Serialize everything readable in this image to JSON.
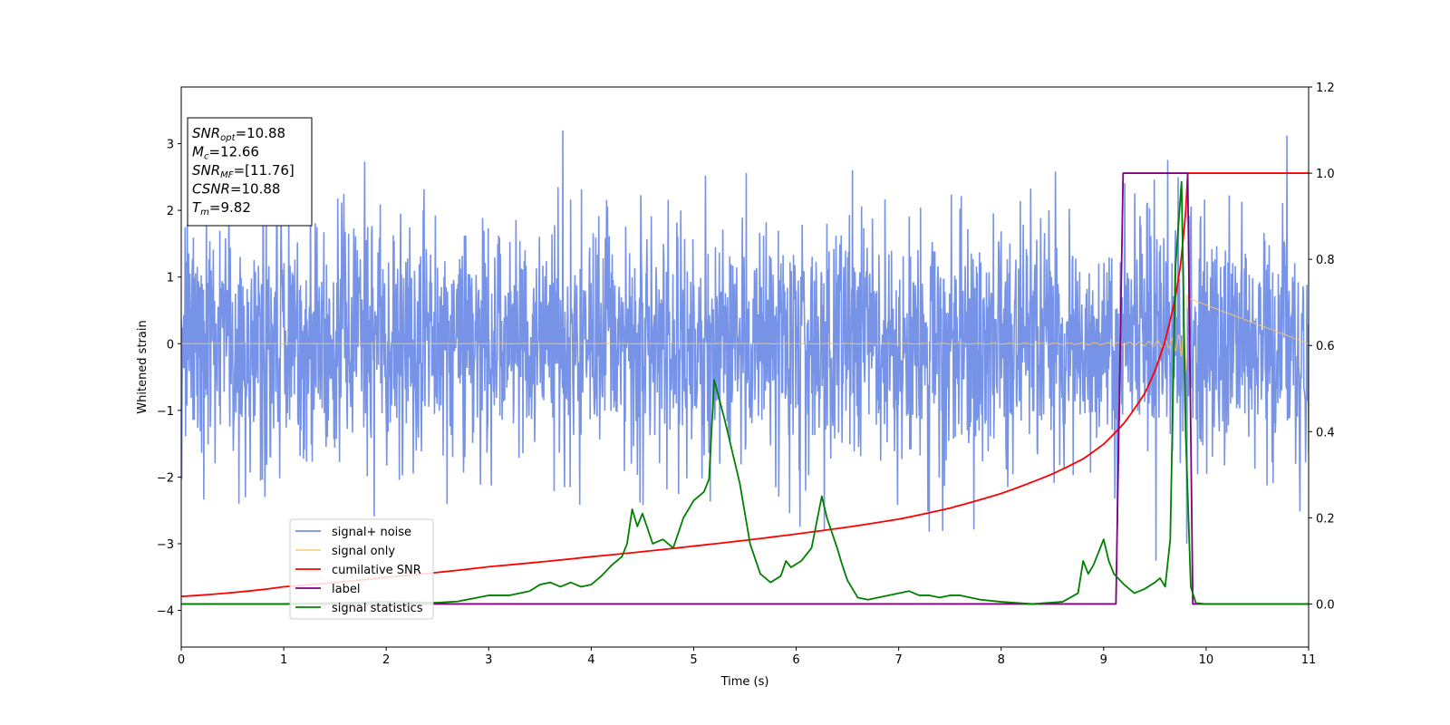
{
  "chart_data": {
    "type": "line",
    "xlabel": "Time (s)",
    "ylabel": "Whitened strain",
    "xlim": [
      0,
      11
    ],
    "ylim_left": [
      -4.55,
      3.85
    ],
    "ylim_right": [
      -0.1,
      1.2
    ],
    "x_ticks": [
      0,
      1,
      2,
      3,
      4,
      5,
      6,
      7,
      8,
      9,
      10,
      11
    ],
    "y_ticks_left": [
      -4,
      -3,
      -2,
      -1,
      0,
      1,
      2,
      3
    ],
    "y_ticks_right": [
      0.0,
      0.2,
      0.4,
      0.6,
      0.8,
      1.0,
      1.2
    ],
    "info_box": [
      {
        "name": "SNR",
        "sub": "opt",
        "value": "=10.88"
      },
      {
        "name": "M",
        "sub": "c",
        "value": "=12.66"
      },
      {
        "name": "SNR",
        "sub": "MF",
        "value": "=[11.76]"
      },
      {
        "name": "CSNR",
        "sub": "",
        "value": "=10.88"
      },
      {
        "name": "T",
        "sub": "m",
        "value": "=9.82"
      }
    ],
    "legend_placement": "lower-left",
    "series": [
      {
        "name": "signal+ noise",
        "color": "#6a8ae6",
        "axis": "left",
        "kind": "noise",
        "range": [
          0,
          11
        ],
        "sigma": 0.9,
        "max_abs": 3.2
      },
      {
        "name": "signal only",
        "color": "#f5c26b",
        "axis": "left",
        "kind": "chirp",
        "range": [
          0,
          9.82
        ],
        "peak_amp": 0.8
      },
      {
        "name": "cumilative SNR",
        "color": "#ff0000",
        "axis": "right",
        "x": [
          0,
          1,
          2,
          3,
          4,
          5,
          6,
          6.5,
          7,
          7.5,
          8,
          8.5,
          8.8,
          9.0,
          9.2,
          9.4,
          9.5,
          9.6,
          9.7,
          9.75,
          9.8,
          9.82,
          11
        ],
        "y": [
          0.0175,
          0.0398,
          0.062,
          0.0865,
          0.1097,
          0.1344,
          0.1624,
          0.1784,
          0.1968,
          0.2225,
          0.2565,
          0.3018,
          0.3369,
          0.3711,
          0.42,
          0.4885,
          0.5409,
          0.6115,
          0.7117,
          0.7868,
          0.9089,
          1.0,
          1.0
        ]
      },
      {
        "name": "label",
        "color": "#800080",
        "axis": "right",
        "x": [
          0,
          9.12,
          9.19,
          9.82,
          9.87,
          11
        ],
        "y": [
          0,
          0,
          1,
          1,
          0,
          0
        ]
      },
      {
        "name": "signal statistics",
        "color": "#008000",
        "axis": "right",
        "x": [
          0,
          1,
          2,
          2.5,
          2.7,
          3.0,
          3.2,
          3.4,
          3.5,
          3.6,
          3.7,
          3.8,
          3.9,
          4.0,
          4.1,
          4.2,
          4.3,
          4.35,
          4.4,
          4.45,
          4.5,
          4.55,
          4.6,
          4.7,
          4.8,
          4.9,
          5.0,
          5.1,
          5.15,
          5.2,
          5.3,
          5.45,
          5.55,
          5.65,
          5.75,
          5.85,
          5.9,
          5.95,
          6.05,
          6.15,
          6.25,
          6.3,
          6.4,
          6.45,
          6.5,
          6.6,
          6.7,
          6.8,
          6.9,
          7.0,
          7.1,
          7.2,
          7.3,
          7.4,
          7.5,
          7.6,
          7.8,
          8.0,
          8.3,
          8.6,
          8.75,
          8.8,
          8.85,
          8.9,
          9.0,
          9.05,
          9.1,
          9.2,
          9.3,
          9.4,
          9.5,
          9.55,
          9.6,
          9.65,
          9.7,
          9.73,
          9.76,
          9.78,
          9.8,
          9.85,
          9.9,
          10.0,
          11.0
        ],
        "y": [
          0,
          0,
          0.005,
          0.003,
          0.006,
          0.02,
          0.02,
          0.03,
          0.045,
          0.05,
          0.04,
          0.05,
          0.04,
          0.045,
          0.065,
          0.09,
          0.11,
          0.14,
          0.22,
          0.18,
          0.21,
          0.175,
          0.14,
          0.15,
          0.13,
          0.2,
          0.24,
          0.26,
          0.29,
          0.52,
          0.43,
          0.28,
          0.14,
          0.07,
          0.05,
          0.065,
          0.1,
          0.085,
          0.1,
          0.13,
          0.25,
          0.2,
          0.13,
          0.09,
          0.055,
          0.015,
          0.01,
          0.015,
          0.02,
          0.025,
          0.03,
          0.02,
          0.02,
          0.015,
          0.02,
          0.02,
          0.01,
          0.005,
          0,
          0.005,
          0.025,
          0.1,
          0.07,
          0.09,
          0.15,
          0.1,
          0.07,
          0.045,
          0.025,
          0.035,
          0.05,
          0.06,
          0.04,
          0.15,
          0.78,
          0.88,
          0.98,
          0.7,
          0.4,
          0.04,
          0.002,
          0,
          0
        ]
      }
    ]
  }
}
